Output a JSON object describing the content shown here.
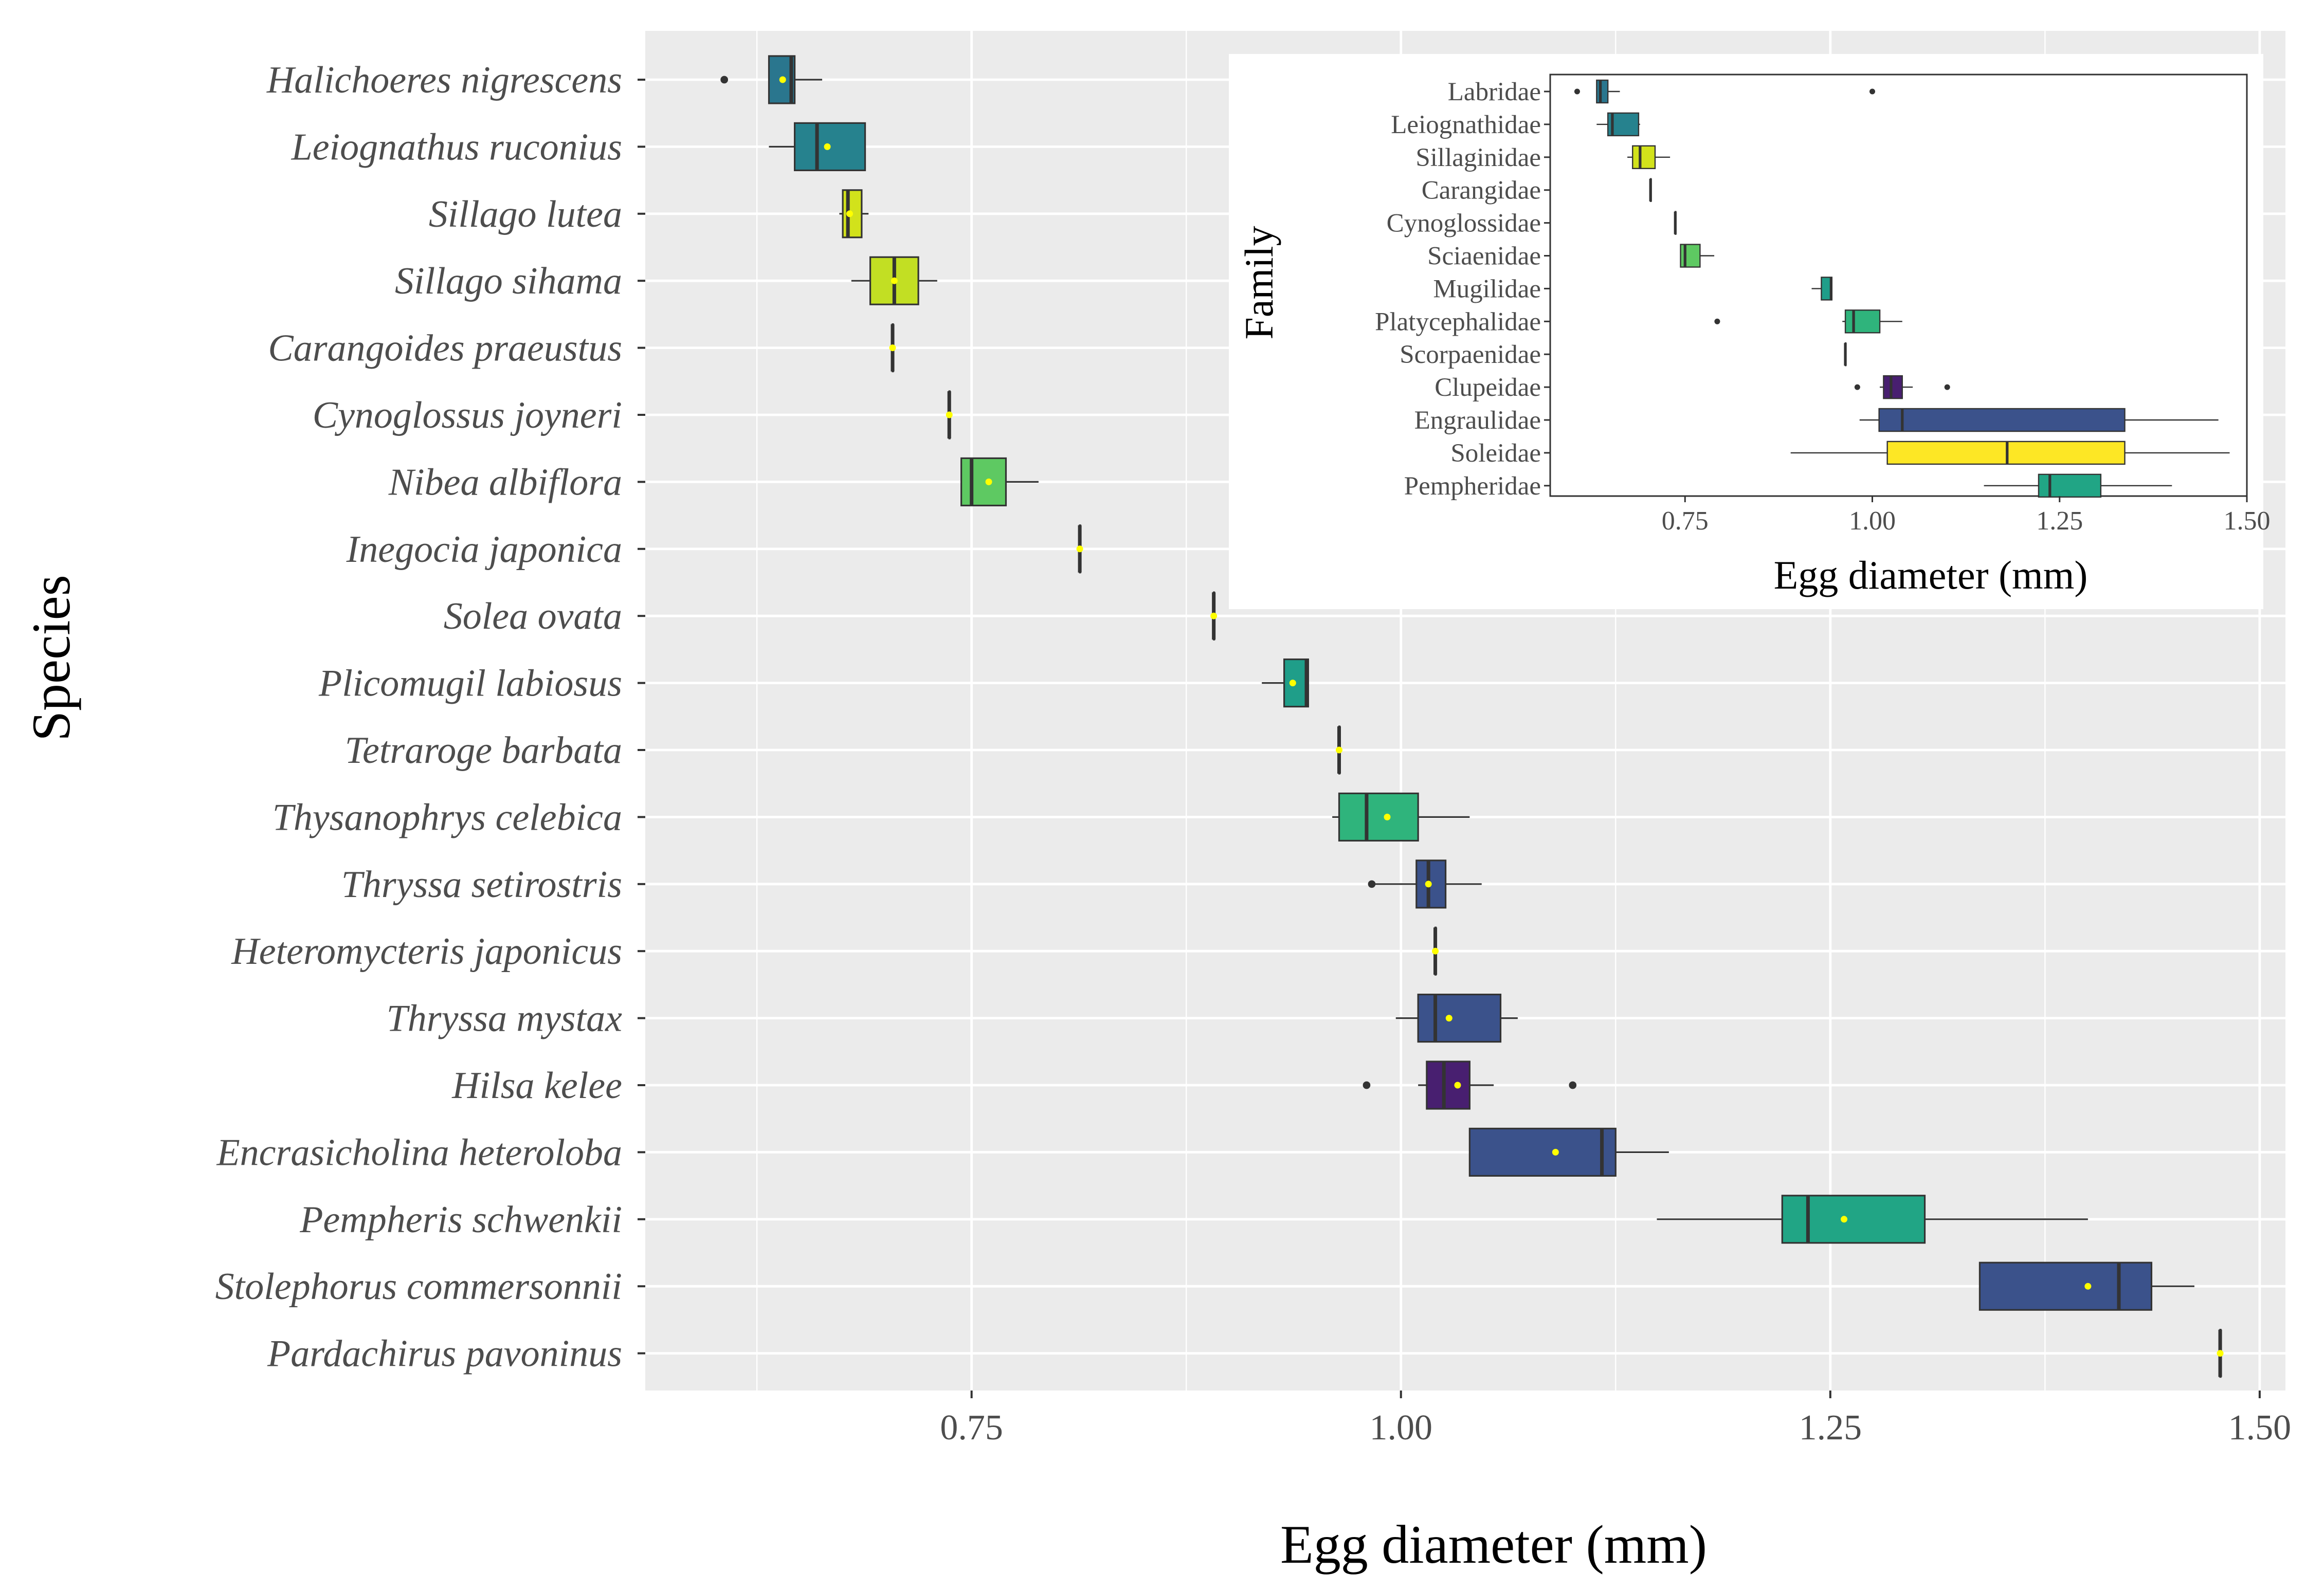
{
  "chart_data": [
    {
      "type": "boxplot",
      "orientation": "horizontal",
      "title": "",
      "xlabel": "Egg diameter (mm)",
      "ylabel": "Species",
      "xlim": [
        0.56,
        1.515
      ],
      "xticks": [
        0.75,
        1.0,
        1.25,
        1.5
      ],
      "xtick_labels": [
        "0.75",
        "1.00",
        "1.25",
        "1.50"
      ],
      "grid": true,
      "mean_marker_color": "#ffff00",
      "species": [
        {
          "name": "Halichoeres nigrescens",
          "fill": "#2a768e",
          "whisker_low": 0.632,
          "q1": 0.632,
          "median": 0.645,
          "q3": 0.647,
          "whisker_high": 0.663,
          "mean": 0.64,
          "outliers": [
            0.606
          ]
        },
        {
          "name": "Leiognathus ruconius",
          "fill": "#26828e",
          "whisker_low": 0.632,
          "q1": 0.647,
          "median": 0.66,
          "q3": 0.688,
          "whisker_high": 0.688,
          "mean": 0.666,
          "outliers": []
        },
        {
          "name": "Sillago lutea",
          "fill": "#d2e21b",
          "whisker_low": 0.673,
          "q1": 0.675,
          "median": 0.678,
          "q3": 0.686,
          "whisker_high": 0.69,
          "mean": 0.679,
          "outliers": []
        },
        {
          "name": "Sillago sihama",
          "fill": "#c2df23",
          "whisker_low": 0.68,
          "q1": 0.691,
          "median": 0.705,
          "q3": 0.719,
          "whisker_high": 0.73,
          "mean": 0.705,
          "outliers": []
        },
        {
          "name": "Carangoides praeustus",
          "fill": "#d2e21b",
          "whisker_low": 0.704,
          "q1": 0.704,
          "median": 0.704,
          "q3": 0.704,
          "whisker_high": 0.704,
          "mean": 0.704,
          "outliers": []
        },
        {
          "name": "Cynoglossus joyneri",
          "fill": "#cde11d",
          "whisker_low": 0.737,
          "q1": 0.737,
          "median": 0.737,
          "q3": 0.737,
          "whisker_high": 0.737,
          "mean": 0.737,
          "outliers": []
        },
        {
          "name": "Nibea albiflora",
          "fill": "#5ec962",
          "whisker_low": 0.744,
          "q1": 0.744,
          "median": 0.75,
          "q3": 0.77,
          "whisker_high": 0.789,
          "mean": 0.76,
          "outliers": []
        },
        {
          "name": "Inegocia japonica",
          "fill": "#21908c",
          "whisker_low": 0.813,
          "q1": 0.813,
          "median": 0.813,
          "q3": 0.813,
          "whisker_high": 0.813,
          "mean": 0.813,
          "outliers": []
        },
        {
          "name": "Solea ovata",
          "fill": "#fde725",
          "whisker_low": 0.891,
          "q1": 0.891,
          "median": 0.891,
          "q3": 0.891,
          "whisker_high": 0.891,
          "mean": 0.891,
          "outliers": []
        },
        {
          "name": "Plicomugil labiosus",
          "fill": "#1f9e89",
          "whisker_low": 0.919,
          "q1": 0.932,
          "median": 0.945,
          "q3": 0.946,
          "whisker_high": 0.946,
          "mean": 0.937,
          "outliers": []
        },
        {
          "name": "Tetraroge barbata",
          "fill": "#1f9e89",
          "whisker_low": 0.964,
          "q1": 0.964,
          "median": 0.964,
          "q3": 0.964,
          "whisker_high": 0.964,
          "mean": 0.964,
          "outliers": []
        },
        {
          "name": "Thysanophrys celebica",
          "fill": "#2fb47c",
          "whisker_low": 0.96,
          "q1": 0.964,
          "median": 0.98,
          "q3": 1.01,
          "whisker_high": 1.04,
          "mean": 0.992,
          "outliers": []
        },
        {
          "name": "Thryssa setirostris",
          "fill": "#3b528b",
          "whisker_low": 0.983,
          "q1": 1.009,
          "median": 1.016,
          "q3": 1.026,
          "whisker_high": 1.047,
          "mean": 1.016,
          "outliers": [
            0.983
          ]
        },
        {
          "name": "Heteromycteris japonicus",
          "fill": "#fde725",
          "whisker_low": 1.02,
          "q1": 1.02,
          "median": 1.02,
          "q3": 1.02,
          "whisker_high": 1.02,
          "mean": 1.02,
          "outliers": []
        },
        {
          "name": "Thryssa mystax",
          "fill": "#3b528b",
          "whisker_low": 0.997,
          "q1": 1.01,
          "median": 1.02,
          "q3": 1.058,
          "whisker_high": 1.068,
          "mean": 1.028,
          "outliers": []
        },
        {
          "name": "Hilsa kelee",
          "fill": "#481f70",
          "whisker_low": 1.01,
          "q1": 1.015,
          "median": 1.025,
          "q3": 1.04,
          "whisker_high": 1.054,
          "mean": 1.033,
          "outliers": [
            0.98,
            1.1
          ]
        },
        {
          "name": "Encrasicholina heteroloba",
          "fill": "#3b528b",
          "whisker_low": 1.04,
          "q1": 1.04,
          "median": 1.117,
          "q3": 1.125,
          "whisker_high": 1.156,
          "mean": 1.09,
          "outliers": []
        },
        {
          "name": "Pempheris schwenkii",
          "fill": "#21a585",
          "whisker_low": 1.149,
          "q1": 1.222,
          "median": 1.237,
          "q3": 1.305,
          "whisker_high": 1.4,
          "mean": 1.258,
          "outliers": []
        },
        {
          "name": "Stolephorus commersonnii",
          "fill": "#3b528b",
          "whisker_low": 1.337,
          "q1": 1.337,
          "median": 1.418,
          "q3": 1.437,
          "whisker_high": 1.462,
          "mean": 1.4,
          "outliers": []
        },
        {
          "name": "Pardachirus pavoninus",
          "fill": "#fde725",
          "whisker_low": 1.477,
          "q1": 1.477,
          "median": 1.477,
          "q3": 1.477,
          "whisker_high": 1.477,
          "mean": 1.477,
          "outliers": []
        }
      ]
    },
    {
      "type": "boxplot",
      "orientation": "horizontal",
      "inset": true,
      "title": "",
      "xlabel": "Egg diameter (mm)",
      "ylabel": "Family",
      "xlim": [
        0.57,
        1.5
      ],
      "xticks": [
        0.75,
        1.0,
        1.25,
        1.5
      ],
      "xtick_labels": [
        "0.75",
        "1.00",
        "1.25",
        "1.50"
      ],
      "grid": false,
      "families": [
        {
          "name": "Labridae",
          "fill": "#2a768e",
          "whisker_low": 0.632,
          "q1": 0.632,
          "median": 0.637,
          "q3": 0.647,
          "whisker_high": 0.663,
          "outliers": [
            0.606,
            1.0
          ]
        },
        {
          "name": "Leiognathidae",
          "fill": "#26828e",
          "whisker_low": 0.632,
          "q1": 0.647,
          "median": 0.653,
          "q3": 0.688,
          "whisker_high": 0.69,
          "outliers": []
        },
        {
          "name": "Sillaginidae",
          "fill": "#d2e21b",
          "whisker_low": 0.673,
          "q1": 0.68,
          "median": 0.69,
          "q3": 0.71,
          "whisker_high": 0.73,
          "outliers": []
        },
        {
          "name": "Carangidae",
          "fill": "#d2e21b",
          "whisker_low": 0.704,
          "q1": 0.704,
          "median": 0.704,
          "q3": 0.704,
          "whisker_high": 0.704,
          "outliers": []
        },
        {
          "name": "Cynoglossidae",
          "fill": "#cde11d",
          "whisker_low": 0.737,
          "q1": 0.737,
          "median": 0.737,
          "q3": 0.737,
          "whisker_high": 0.737,
          "outliers": []
        },
        {
          "name": "Sciaenidae",
          "fill": "#5ec962",
          "whisker_low": 0.744,
          "q1": 0.744,
          "median": 0.75,
          "q3": 0.77,
          "whisker_high": 0.789,
          "outliers": []
        },
        {
          "name": "Mugilidae",
          "fill": "#1f9e89",
          "whisker_low": 0.919,
          "q1": 0.932,
          "median": 0.945,
          "q3": 0.946,
          "whisker_high": 0.946,
          "outliers": []
        },
        {
          "name": "Platycephalidae",
          "fill": "#2fb47c",
          "whisker_low": 0.96,
          "q1": 0.964,
          "median": 0.975,
          "q3": 1.01,
          "whisker_high": 1.04,
          "outliers": [
            0.793
          ]
        },
        {
          "name": "Scorpaenidae",
          "fill": "#1f9e89",
          "whisker_low": 0.964,
          "q1": 0.964,
          "median": 0.964,
          "q3": 0.964,
          "whisker_high": 0.964,
          "outliers": []
        },
        {
          "name": "Clupeidae",
          "fill": "#481f70",
          "whisker_low": 1.01,
          "q1": 1.015,
          "median": 1.025,
          "q3": 1.04,
          "whisker_high": 1.054,
          "outliers": [
            0.98,
            1.1
          ]
        },
        {
          "name": "Engraulidae",
          "fill": "#3b528b",
          "whisker_low": 0.983,
          "q1": 1.009,
          "median": 1.04,
          "q3": 1.337,
          "whisker_high": 1.462,
          "outliers": []
        },
        {
          "name": "Soleidae",
          "fill": "#fde725",
          "whisker_low": 0.891,
          "q1": 1.02,
          "median": 1.18,
          "q3": 1.337,
          "whisker_high": 1.477,
          "outliers": []
        },
        {
          "name": "Pempheridae",
          "fill": "#21a585",
          "whisker_low": 1.149,
          "q1": 1.222,
          "median": 1.237,
          "q3": 1.305,
          "whisker_high": 1.4,
          "outliers": []
        }
      ]
    }
  ]
}
